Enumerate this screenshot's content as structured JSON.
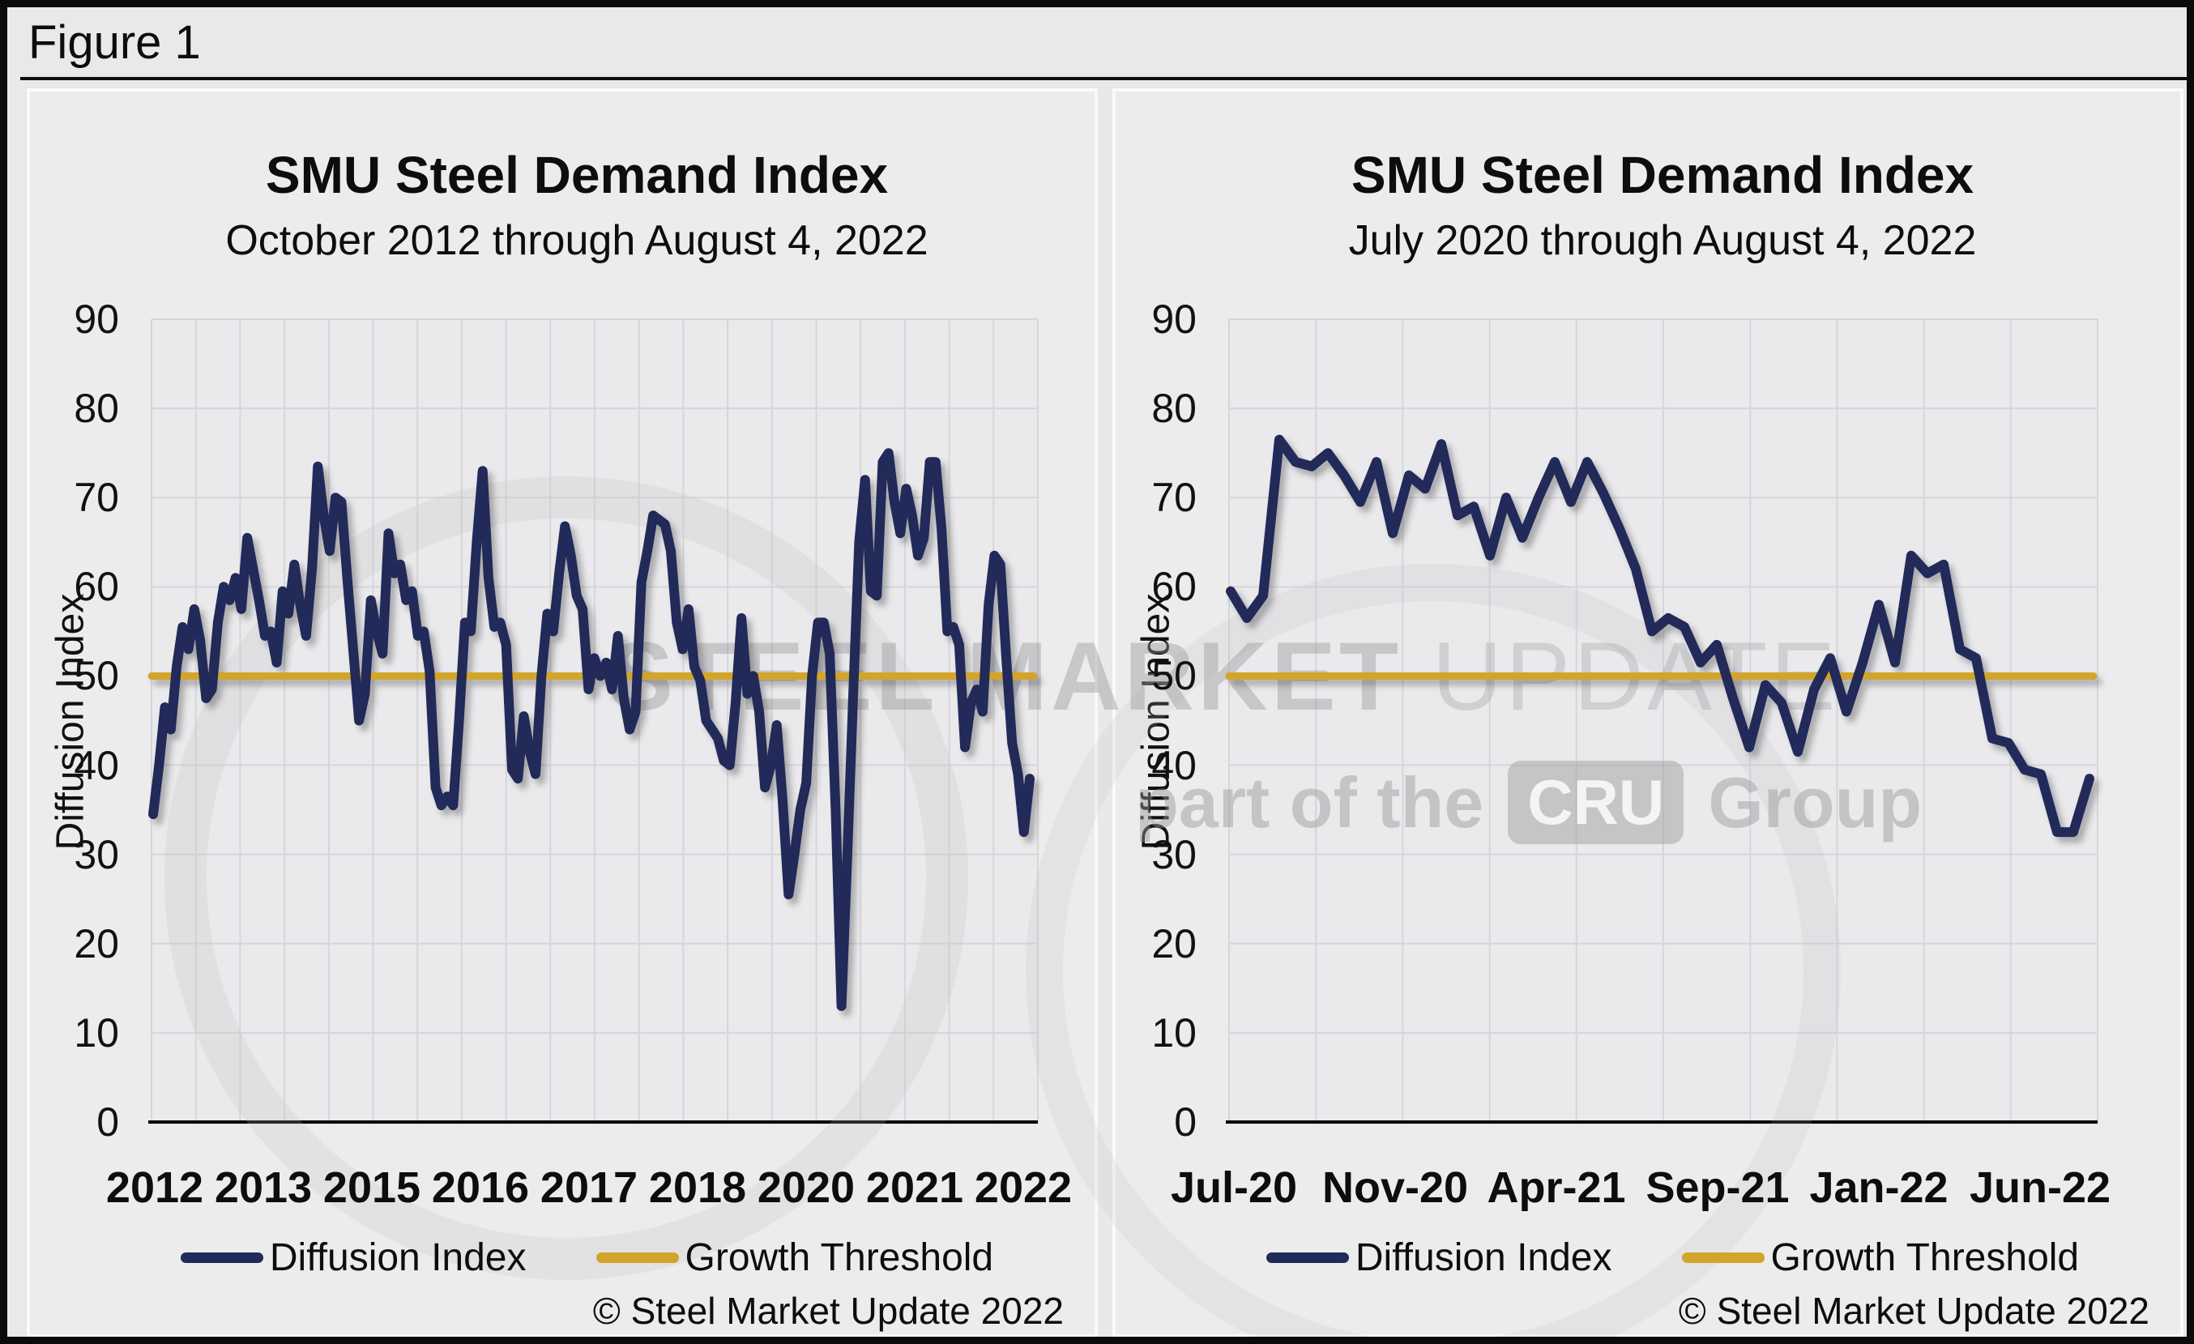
{
  "figure_label": "Figure 1",
  "copyright_note": "© Steel Market Update 2022",
  "watermark": {
    "title_strong": "STEEL MARKET",
    "title_light": " UPDATE",
    "tagline_prefix": "part of the",
    "tagline_badge": "CRU",
    "tagline_suffix": "Group"
  },
  "colors": {
    "series_navy": "#212A58",
    "threshold_gold": "#D2A42A",
    "plot_background": "#eaeaec",
    "gridline": "#d6d6da",
    "axis": "#000000"
  },
  "chart_data": [
    {
      "type": "line",
      "title": "SMU Steel Demand Index",
      "subtitle": "October 2012 through August 4, 2022",
      "xlabel": "",
      "ylabel": "Diffusion Index",
      "ylim": [
        0,
        90
      ],
      "y_ticks": [
        0,
        10,
        20,
        30,
        40,
        50,
        60,
        70,
        80,
        90
      ],
      "x_tick_labels": [
        "2012",
        "2013",
        "2015",
        "2016",
        "2017",
        "2018",
        "2020",
        "2021",
        "2022"
      ],
      "x_gridline_intervals": 20,
      "grid": true,
      "legend_position": "bottom",
      "series": [
        {
          "name": "Diffusion Index",
          "color": "#212A58",
          "values": [
            34.5,
            40,
            46.5,
            44,
            51,
            55.5,
            53,
            57.5,
            54,
            47.5,
            48.5,
            56,
            60,
            58.5,
            61,
            57.5,
            65.5,
            62,
            58.5,
            54.5,
            55,
            51.5,
            59.5,
            57,
            62.5,
            58,
            54.5,
            62,
            73.5,
            68,
            64,
            70,
            69.5,
            61,
            53,
            45,
            48,
            58.5,
            55,
            52.5,
            66,
            61.5,
            62.5,
            58.5,
            59.5,
            54.5,
            55,
            50.5,
            37.5,
            35.5,
            36.5,
            35.5,
            45,
            56,
            55,
            65,
            73,
            61,
            55.5,
            56,
            53.5,
            39.5,
            38.5,
            45.5,
            41.5,
            39,
            50,
            57,
            55,
            61.5,
            66.8,
            63.5,
            59,
            57.5,
            48.5,
            52,
            50,
            51.5,
            48.5,
            54.5,
            47.5,
            44,
            46,
            60.5,
            64,
            68,
            67.5,
            67,
            64,
            56,
            53,
            57.5,
            51,
            49.5,
            45,
            44,
            43,
            40.5,
            40,
            47,
            56.5,
            48,
            50,
            46,
            37.5,
            40,
            44.5,
            36,
            25.5,
            30,
            35,
            38,
            50,
            56,
            56,
            52.5,
            35,
            13,
            30,
            48,
            65,
            72,
            59.5,
            59,
            74,
            75,
            69.5,
            66,
            71,
            68,
            63.5,
            65.5,
            74,
            74,
            66.5,
            55,
            55.5,
            53.5,
            42,
            47,
            48.5,
            46,
            58,
            63.5,
            62.5,
            52,
            42.5,
            39,
            32.5,
            38.5
          ]
        },
        {
          "name": "Growth Threshold",
          "type": "threshold",
          "color": "#D2A42A",
          "value": 50
        }
      ]
    },
    {
      "type": "line",
      "title": "SMU Steel Demand Index",
      "subtitle": "July 2020 through August 4, 2022",
      "xlabel": "",
      "ylabel": "Diffusion Index",
      "ylim": [
        0,
        90
      ],
      "y_ticks": [
        0,
        10,
        20,
        30,
        40,
        50,
        60,
        70,
        80,
        90
      ],
      "x_tick_labels": [
        "Jul-20",
        "Nov-20",
        "Apr-21",
        "Sep-21",
        "Jan-22",
        "Jun-22"
      ],
      "x_gridline_intervals": 10,
      "grid": true,
      "legend_position": "bottom",
      "series": [
        {
          "name": "Diffusion Index",
          "color": "#212A58",
          "values": [
            59.5,
            56.5,
            59,
            76.5,
            74,
            73.5,
            75,
            72.5,
            69.5,
            74,
            66,
            72.5,
            71,
            76,
            68,
            69,
            63.5,
            70,
            65.5,
            70,
            74,
            69.5,
            74,
            70.5,
            66.5,
            62,
            55,
            56.5,
            55.5,
            51.5,
            53.5,
            47.5,
            42,
            49,
            47,
            41.5,
            48.5,
            52,
            46,
            51.5,
            58,
            51.5,
            63.5,
            61.5,
            62.5,
            53,
            52,
            43,
            42.5,
            39.5,
            39,
            32.5,
            32.5,
            38.5
          ]
        },
        {
          "name": "Growth Threshold",
          "type": "threshold",
          "color": "#D2A42A",
          "value": 50
        }
      ]
    }
  ]
}
